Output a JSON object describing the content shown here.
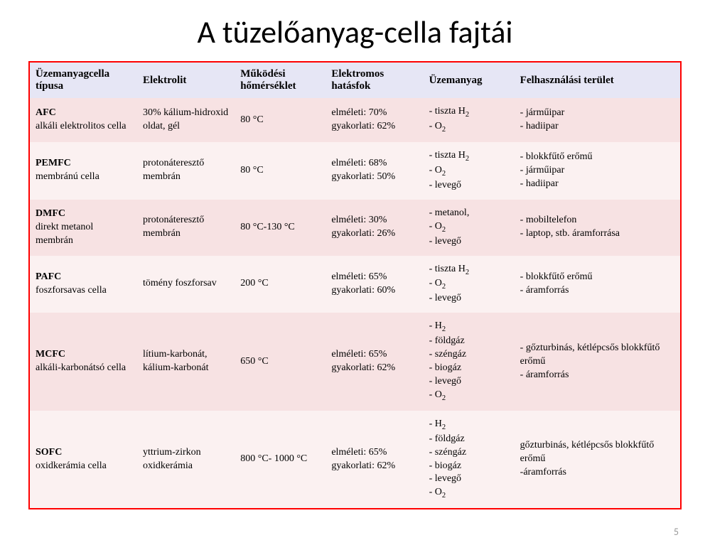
{
  "slide": {
    "title": "A tüzelőanyag-cella fajtái",
    "page_number": "5"
  },
  "table": {
    "border_color": "#ff0000",
    "header_bg": "#e6e6f5",
    "row_odd_bg": "#f7e2e3",
    "row_even_bg": "#fbf1f1",
    "columns": [
      "Üzemanyagcella típusa",
      "Elektrolit",
      "Működési hőmérséklet",
      "Elektromos hatásfok",
      "Üzemanyag",
      "Felhasználási terület"
    ],
    "rows": [
      {
        "abbr": "AFC",
        "name_html": "alkáli elektrolitos cella",
        "elektrolit_html": "30% kálium-hidroxid oldat, gél",
        "temp_html": "80 °C",
        "hatasfok_html": "elméleti: 70%<br>gyakorlati: 62%",
        "fuel_html": "- tiszta H<sub>2</sub><br>- O<sub>2</sub>",
        "app_html": "- járműipar<br>- hadiipar"
      },
      {
        "abbr": "PEMFC",
        "name_html": "membránú cella",
        "elektrolit_html": "protonáteresztő membrán",
        "temp_html": "80 °C",
        "hatasfok_html": "elméleti: 68%<br>gyakorlati: 50%",
        "fuel_html": "- tiszta H<sub>2</sub><br>- O<sub>2</sub><br>- levegő",
        "app_html": "- blokkfűtő erőmű<br>- járműipar<br>- hadiipar"
      },
      {
        "abbr": "DMFC",
        "name_html": "direkt metanol membrán",
        "elektrolit_html": "protonáteresztő membrán",
        "temp_html": "80 °C-130 °C",
        "hatasfok_html": "elméleti: 30%<br>gyakorlati: 26%",
        "fuel_html": "- metanol,<br>- O<sub>2</sub><br>- levegő",
        "app_html": "- mobiltelefon<br>- laptop, stb. áramforrása"
      },
      {
        "abbr": "PAFC",
        "name_html": "foszforsavas cella",
        "elektrolit_html": "tömény foszforsav",
        "temp_html": "200 °C",
        "hatasfok_html": "elméleti: 65%<br>gyakorlati: 60%",
        "fuel_html": "- tiszta H<sub>2</sub><br>- O<sub>2</sub><br>- levegő",
        "app_html": "- blokkfűtő erőmű<br>- áramforrás"
      },
      {
        "abbr": "MCFC",
        "name_html": "alkáli-karbonátsó cella",
        "elektrolit_html": "lítium-karbonát, kálium-karbonát",
        "temp_html": "650 °C",
        "hatasfok_html": "elméleti: 65%<br>gyakorlati: 62%",
        "fuel_html": "- H<sub>2</sub><br>- földgáz<br>- széngáz<br>- biogáz<br>- levegő<br>- O<sub>2</sub>",
        "app_html": "- gőzturbinás, kétlépcsős blokkfűtő erőmű<br>- áramforrás"
      },
      {
        "abbr": "SOFC",
        "name_html": "oxidkerámia cella",
        "elektrolit_html": "yttrium-zirkon oxidkerámia",
        "temp_html": "800 °C- 1000 °C",
        "hatasfok_html": "elméleti: 65%<br>gyakorlati: 62%",
        "fuel_html": "- H<sub>2</sub><br>- földgáz<br>- széngáz<br>- biogáz<br>- levegő<br>- O<sub>2</sub>",
        "app_html": "gőzturbinás, kétlépcsős blokkfűtő erőmű<br>-áramforrás"
      }
    ]
  }
}
